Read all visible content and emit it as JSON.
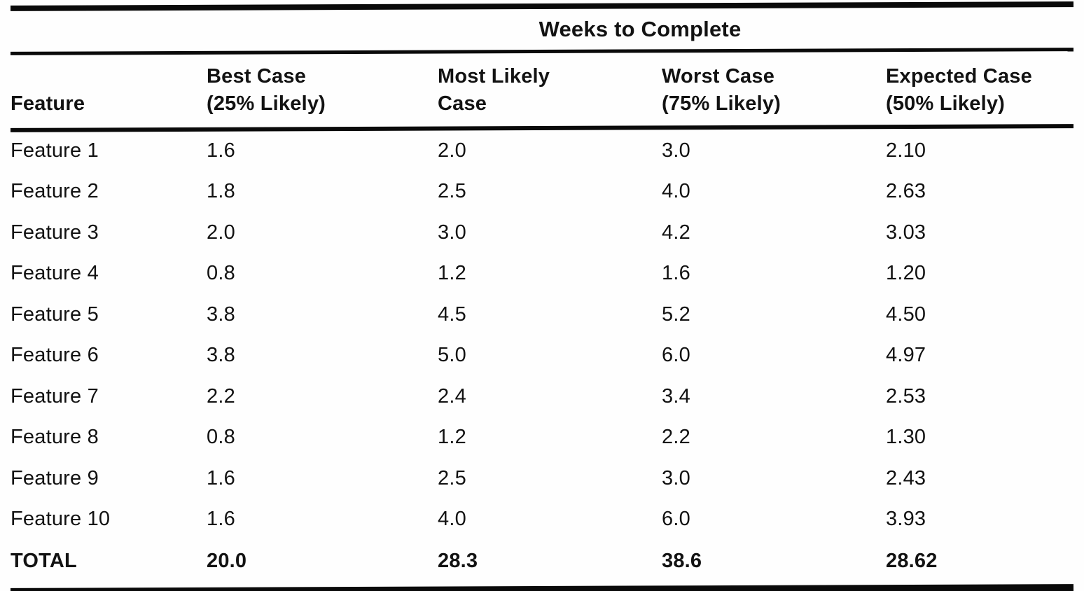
{
  "table": {
    "spanning_header": "Weeks to Complete",
    "columns": [
      {
        "label": "Feature"
      },
      {
        "line1": "Best Case",
        "line2": "(25% Likely)"
      },
      {
        "line1": "Most Likely",
        "line2": "Case"
      },
      {
        "line1": "Worst Case",
        "line2": "(75% Likely)"
      },
      {
        "line1": "Expected Case",
        "line2": "(50% Likely)"
      }
    ],
    "rows": [
      {
        "feature": "Feature 1",
        "best": "1.6",
        "likely": "2.0",
        "worst": "3.0",
        "expected": "2.10"
      },
      {
        "feature": "Feature 2",
        "best": "1.8",
        "likely": "2.5",
        "worst": "4.0",
        "expected": "2.63"
      },
      {
        "feature": "Feature 3",
        "best": "2.0",
        "likely": "3.0",
        "worst": "4.2",
        "expected": "3.03"
      },
      {
        "feature": "Feature 4",
        "best": "0.8",
        "likely": "1.2",
        "worst": "1.6",
        "expected": "1.20"
      },
      {
        "feature": "Feature 5",
        "best": "3.8",
        "likely": "4.5",
        "worst": "5.2",
        "expected": "4.50"
      },
      {
        "feature": "Feature 6",
        "best": "3.8",
        "likely": "5.0",
        "worst": "6.0",
        "expected": "4.97"
      },
      {
        "feature": "Feature 7",
        "best": "2.2",
        "likely": "2.4",
        "worst": "3.4",
        "expected": "2.53"
      },
      {
        "feature": "Feature 8",
        "best": "0.8",
        "likely": "1.2",
        "worst": "2.2",
        "expected": "1.30"
      },
      {
        "feature": "Feature 9",
        "best": "1.6",
        "likely": "2.5",
        "worst": "3.0",
        "expected": "2.43"
      },
      {
        "feature": "Feature 10",
        "best": "1.6",
        "likely": "4.0",
        "worst": "6.0",
        "expected": "3.93"
      }
    ],
    "total_row": {
      "feature": "TOTAL",
      "best": "20.0",
      "likely": "28.3",
      "worst": "38.6",
      "expected": "28.62"
    }
  },
  "colors": {
    "ink": "#0a0a0a",
    "paper": "#fefefe"
  }
}
